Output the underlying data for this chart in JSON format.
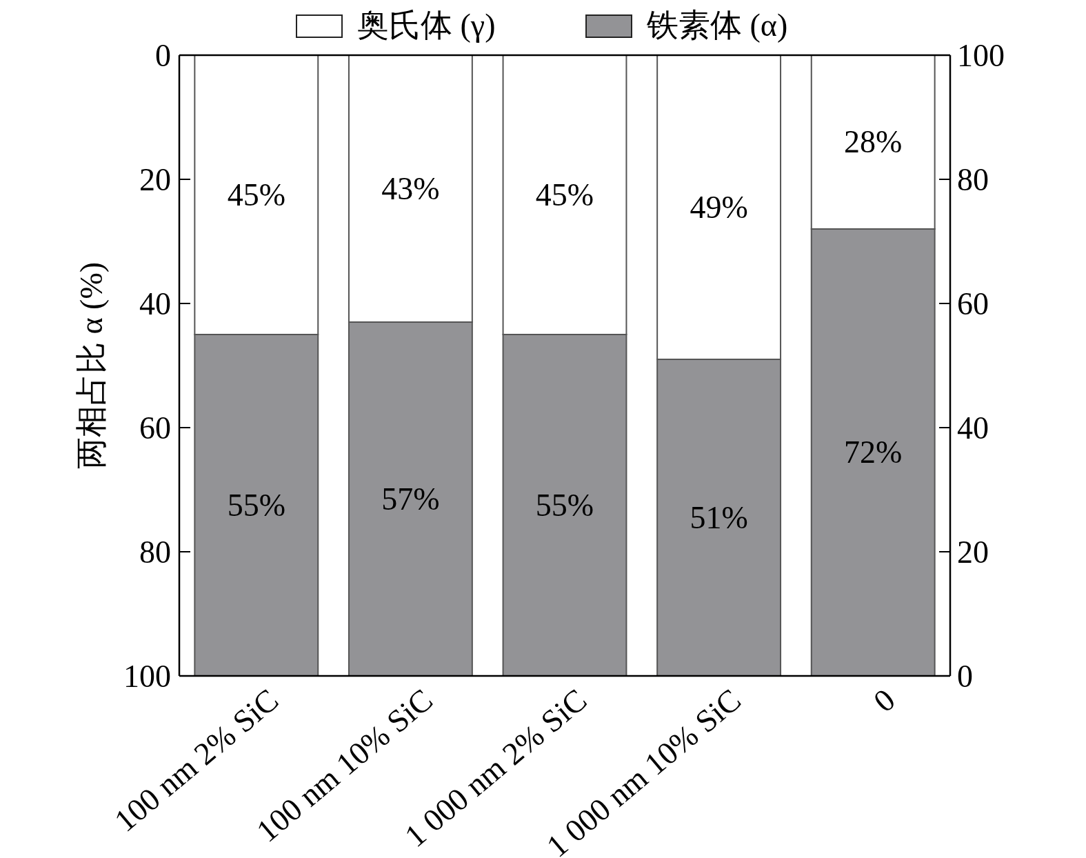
{
  "chart_data": {
    "type": "bar",
    "stacked": true,
    "ylabel": "两相占比 α (%)",
    "categories": [
      "100 nm 2% SiC",
      "100 nm 10% SiC",
      "1 000 nm 2% SiC",
      "1 000 nm 10% SiC",
      "0"
    ],
    "series": [
      {
        "name": "铁素体 (α)",
        "color": "#939396",
        "axis": "y2",
        "values": [
          55,
          57,
          55,
          51,
          72
        ],
        "value_labels": [
          "55%",
          "57%",
          "55%",
          "51%",
          "72%"
        ]
      },
      {
        "name": "奥氏体 (γ)",
        "color": "#ffffff",
        "axis": "y2",
        "values": [
          45,
          43,
          45,
          49,
          28
        ],
        "value_labels": [
          "45%",
          "43%",
          "45%",
          "49%",
          "28%"
        ]
      }
    ],
    "ylim": [
      100,
      0
    ],
    "yticks": [
      0,
      20,
      40,
      60,
      80,
      100
    ],
    "y2lim": [
      0,
      100
    ],
    "y2ticks": [
      0,
      20,
      40,
      60,
      80,
      100
    ],
    "legend": "top",
    "grid": false
  }
}
